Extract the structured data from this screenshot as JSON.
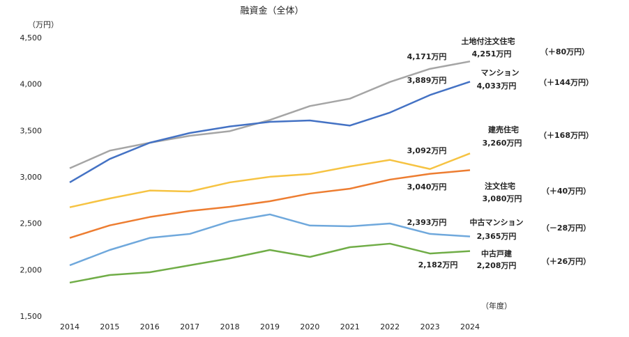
{
  "chart_data": {
    "type": "line",
    "title": "融資金（全体）",
    "y_unit": "（万円）",
    "x_unit": "（年度）",
    "categories": [
      "2014",
      "2015",
      "2016",
      "2017",
      "2018",
      "2019",
      "2020",
      "2021",
      "2022",
      "2023",
      "2024"
    ],
    "ylim": [
      1500,
      4500
    ],
    "yticks": [
      {
        "value": 1500,
        "label": "1,500"
      },
      {
        "value": 2000,
        "label": "2,000"
      },
      {
        "value": 2500,
        "label": "2,500"
      },
      {
        "value": 3000,
        "label": "3,000"
      },
      {
        "value": 3500,
        "label": "3,500"
      },
      {
        "value": 4000,
        "label": "4,000"
      },
      {
        "value": 4500,
        "label": "4,500"
      }
    ],
    "grid": false,
    "series": [
      {
        "name": "土地付注文住宅",
        "color": "#a5a5a5",
        "change": "（＋80万円）",
        "values": [
          3100,
          3290,
          3375,
          3450,
          3500,
          3620,
          3770,
          3850,
          4030,
          4171,
          4251
        ],
        "value_labels": [
          null,
          null,
          null,
          null,
          null,
          null,
          null,
          null,
          null,
          "4,171万円",
          "4,251万円"
        ]
      },
      {
        "name": "マンション",
        "color": "#4472c4",
        "change": "（＋144万円）",
        "values": [
          2948,
          3200,
          3375,
          3480,
          3550,
          3600,
          3615,
          3560,
          3700,
          3889,
          4033
        ],
        "value_labels": [
          null,
          null,
          null,
          null,
          null,
          null,
          null,
          null,
          null,
          "3,889万円",
          "4,033万円"
        ]
      },
      {
        "name": "建売住宅",
        "color": "#f6c342",
        "change": "（＋168万円）",
        "values": [
          2680,
          2775,
          2860,
          2850,
          2948,
          3008,
          3038,
          3120,
          3190,
          3092,
          3260
        ],
        "value_labels": [
          null,
          null,
          null,
          null,
          null,
          null,
          null,
          null,
          null,
          "3,092万円",
          "3,260万円"
        ]
      },
      {
        "name": "注文住宅",
        "color": "#ed7d31",
        "change": "（＋40万円）",
        "values": [
          2350,
          2485,
          2575,
          2640,
          2685,
          2745,
          2828,
          2880,
          2978,
          3040,
          3080
        ],
        "value_labels": [
          null,
          null,
          null,
          null,
          null,
          null,
          null,
          null,
          null,
          "3,040万円",
          "3,080万円"
        ]
      },
      {
        "name": "中古マンション",
        "color": "#6fa8dc",
        "change": "（－28万円）",
        "values": [
          2055,
          2220,
          2350,
          2393,
          2528,
          2603,
          2483,
          2475,
          2505,
          2393,
          2365
        ],
        "value_labels": [
          null,
          null,
          null,
          null,
          null,
          null,
          null,
          null,
          null,
          "2,393万円",
          "2,365万円"
        ]
      },
      {
        "name": "中古戸建",
        "color": "#70ad47",
        "change": "（＋26万円）",
        "values": [
          1868,
          1950,
          1980,
          2055,
          2130,
          2220,
          2145,
          2250,
          2288,
          2182,
          2208
        ],
        "value_labels": [
          null,
          null,
          null,
          null,
          null,
          null,
          null,
          null,
          null,
          "2,182万円",
          "2,208万円"
        ]
      }
    ]
  }
}
